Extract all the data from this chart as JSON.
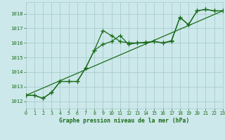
{
  "title": "Graphe pression niveau de la mer (hPa)",
  "background_color": "#cce8ea",
  "grid_color": "#aaccce",
  "line_color": "#1a6b1a",
  "xlim": [
    0,
    23
  ],
  "ylim": [
    1011.5,
    1018.8
  ],
  "yticks": [
    1012,
    1013,
    1014,
    1015,
    1016,
    1017,
    1018
  ],
  "xticks": [
    0,
    1,
    2,
    3,
    4,
    5,
    6,
    7,
    8,
    9,
    10,
    11,
    12,
    13,
    14,
    15,
    16,
    17,
    18,
    19,
    20,
    21,
    22,
    23
  ],
  "trend_x": [
    0,
    23
  ],
  "trend_y": [
    1012.4,
    1018.2
  ],
  "series_upper_x": [
    0,
    1,
    2,
    3,
    4,
    5,
    6,
    7,
    8,
    9,
    10,
    11,
    12,
    13,
    14,
    15,
    16,
    17,
    18,
    19,
    20,
    21,
    22,
    23
  ],
  "series_upper_y": [
    1012.4,
    1012.4,
    1012.2,
    1012.6,
    1013.35,
    1013.35,
    1013.35,
    1014.3,
    1015.5,
    1016.85,
    1016.5,
    1016.1,
    1016.0,
    1016.0,
    1016.05,
    1016.1,
    1016.0,
    1016.15,
    1017.75,
    1017.25,
    1018.2,
    1018.3,
    1018.2,
    1018.2
  ],
  "series_lower_x": [
    0,
    1,
    2,
    3,
    4,
    5,
    6,
    7,
    8,
    9,
    10,
    11,
    12,
    13,
    14,
    15,
    16,
    17,
    18,
    19,
    20,
    21,
    22,
    23
  ],
  "series_lower_y": [
    1012.4,
    1012.4,
    1012.2,
    1012.6,
    1013.35,
    1013.35,
    1013.35,
    1014.3,
    1015.5,
    1015.9,
    1016.1,
    1016.5,
    1015.9,
    1016.0,
    1016.0,
    1016.1,
    1016.0,
    1016.1,
    1017.75,
    1017.25,
    1018.2,
    1018.3,
    1018.2,
    1018.2
  ]
}
